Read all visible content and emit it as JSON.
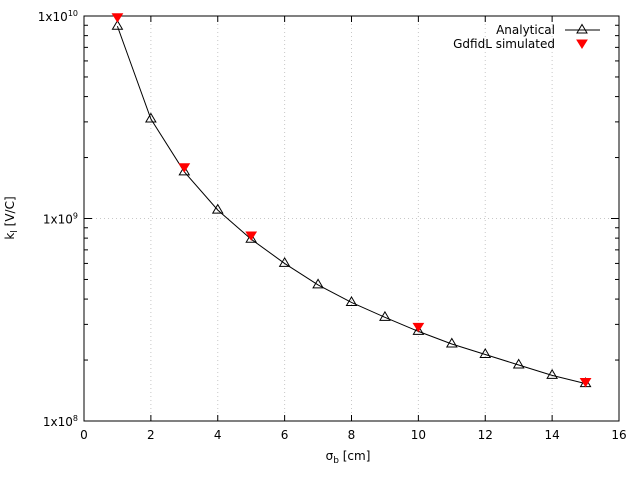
{
  "chart_data": {
    "type": "line",
    "title": "",
    "xlabel": {
      "main": "σ",
      "sub": "b",
      "unit": " [cm]"
    },
    "ylabel": {
      "main": "k",
      "sub": "l",
      "unit": " [V/C]"
    },
    "xlim": [
      0,
      16
    ],
    "ylim": [
      100000000,
      10000000000
    ],
    "yscale": "log",
    "grid": true,
    "legend_position": "top-right",
    "x_ticks": [
      "0",
      "2",
      "4",
      "6",
      "8",
      "10",
      "12",
      "14",
      "16"
    ],
    "y_ticks": [
      {
        "value": 100000000,
        "base": "1x10",
        "exp": "8"
      },
      {
        "value": 1000000000,
        "base": "1x10",
        "exp": "9"
      },
      {
        "value": 10000000000,
        "base": "1x10",
        "exp": "10"
      }
    ],
    "series": [
      {
        "name": "Analytical",
        "marker": "open-triangle-up",
        "color": "#000000",
        "line": true,
        "x": [
          1,
          2,
          3,
          4,
          5,
          6,
          7,
          8,
          9,
          10,
          11,
          12,
          13,
          14,
          15
        ],
        "y": [
          8900000000,
          3100000000,
          1700000000,
          1100000000,
          790000000,
          600000000,
          470000000,
          385000000,
          325000000,
          277000000,
          240000000,
          213000000,
          189000000,
          168000000,
          153000000
        ]
      },
      {
        "name": "GdfidL simulated",
        "marker": "filled-triangle-down",
        "color": "#ff0000",
        "line": false,
        "x": [
          1,
          3,
          5,
          10,
          15
        ],
        "y": [
          9800000000,
          1780000000,
          820000000,
          290000000,
          155000000
        ]
      }
    ]
  }
}
